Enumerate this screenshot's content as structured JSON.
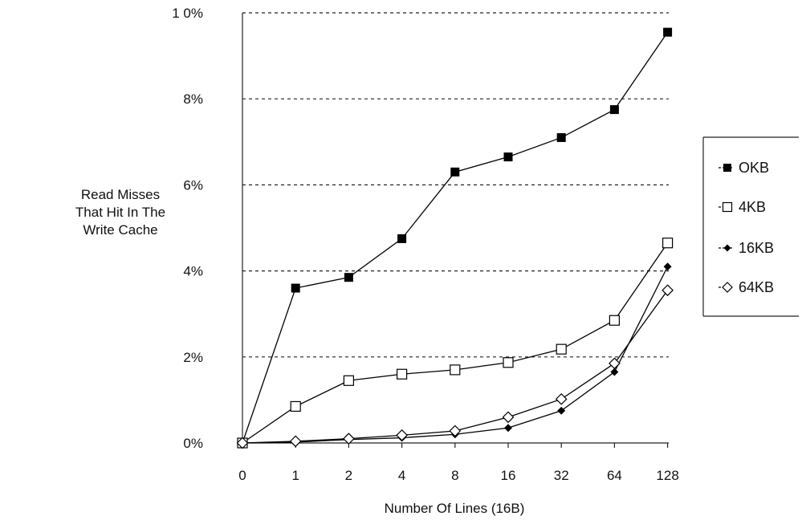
{
  "chart_data": {
    "type": "line",
    "title": "",
    "xlabel": "Number Of Lines (16B)",
    "ylabel_lines": [
      "Read Misses",
      "That Hit In The",
      "Write Cache"
    ],
    "categories": [
      "0",
      "1",
      "2",
      "4",
      "8",
      "16",
      "32",
      "64",
      "128"
    ],
    "y_ticks": [
      "0%",
      "2%",
      "4%",
      "6%",
      "8%",
      "1 0%"
    ],
    "ylim": [
      0,
      10
    ],
    "y_unit": "%",
    "grid": "horizontal-dashed",
    "legend_position": "right",
    "series": [
      {
        "name": "OKB",
        "marker": "filled-square",
        "color": "#000000",
        "values": [
          0.0,
          3.6,
          3.85,
          4.75,
          6.3,
          6.65,
          7.1,
          7.75,
          9.55
        ]
      },
      {
        "name": "4KB",
        "marker": "open-square",
        "color": "#000000",
        "values": [
          0.0,
          0.85,
          1.45,
          1.6,
          1.7,
          1.87,
          2.18,
          2.85,
          4.65
        ]
      },
      {
        "name": "16KB",
        "marker": "filled-diamond",
        "color": "#000000",
        "values": [
          0.0,
          0.02,
          0.08,
          0.12,
          0.2,
          0.35,
          0.75,
          1.65,
          4.1
        ]
      },
      {
        "name": "64KB",
        "marker": "open-diamond",
        "color": "#000000",
        "values": [
          0.0,
          0.04,
          0.1,
          0.18,
          0.28,
          0.6,
          1.02,
          1.85,
          3.55
        ]
      }
    ]
  }
}
